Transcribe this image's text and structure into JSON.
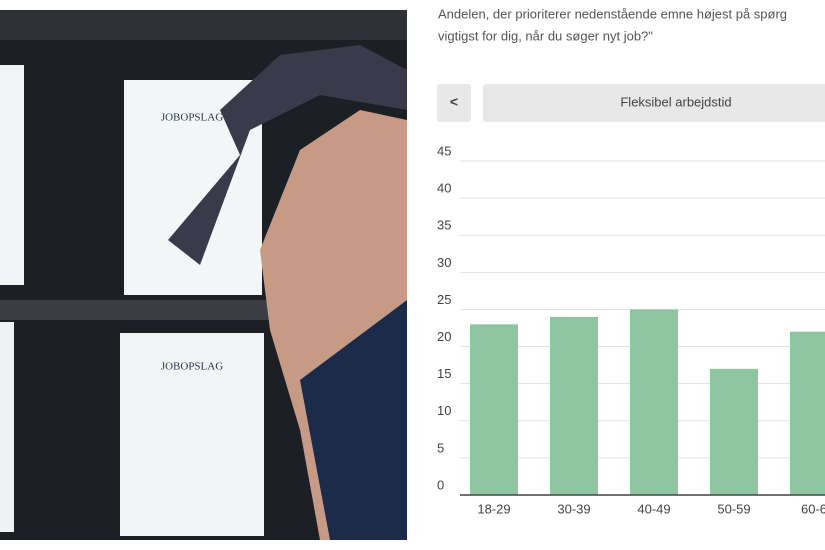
{
  "photo": {
    "signs": [
      "JOBOPSLAG",
      "JOBOPSLAG"
    ]
  },
  "chart_data": {
    "type": "bar",
    "title_lines": [
      "Andelen, der prioriterer nedenstående emne højest på spørg",
      "vigtigst for dig, når du søger nyt job?\""
    ],
    "nav": {
      "back": "<",
      "selected": "Fleksibel arbejdstid"
    },
    "categories": [
      "18-29",
      "30-39",
      "40-49",
      "50-59",
      "60-6"
    ],
    "values": [
      23,
      24,
      25,
      17,
      22
    ],
    "color": "#8ec5a0",
    "ylim": [
      0,
      45
    ],
    "yticks": [
      0,
      5,
      10,
      15,
      20,
      25,
      30,
      35,
      40,
      45
    ],
    "grid": true
  }
}
